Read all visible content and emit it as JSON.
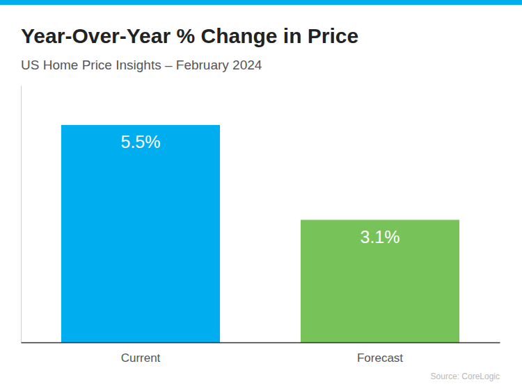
{
  "chart_data": {
    "type": "bar",
    "title": "Year-Over-Year % Change in Price",
    "subtitle": "US Home Price Insights – February 2024",
    "categories": [
      "Current",
      "Forecast"
    ],
    "values": [
      5.5,
      3.1
    ],
    "value_labels": [
      "5.5%",
      "3.1%"
    ],
    "colors": [
      "#00aeef",
      "#77c259"
    ],
    "ylim": [
      0,
      6.5
    ],
    "yticks": [],
    "grid": false,
    "data_labels": true,
    "tick_labels": "x",
    "source": "Source: CoreLogic"
  }
}
